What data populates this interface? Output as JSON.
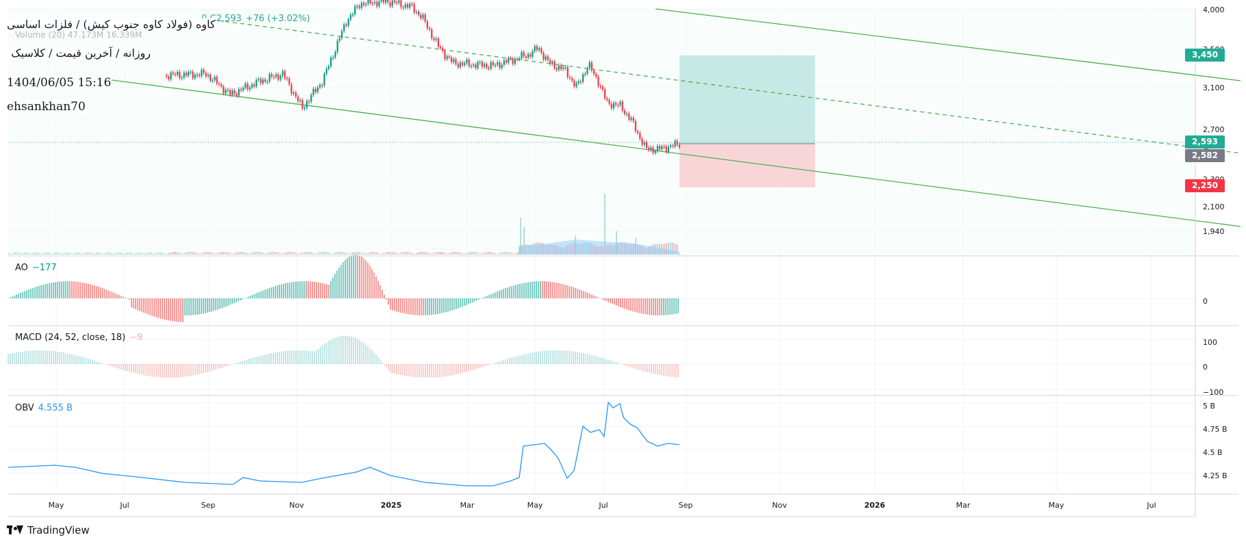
{
  "overlay": {
    "symbol_line": "کاوه (فولاد کاوه جنوب کیش) / فلزات اساسی",
    "subtitle_line": "روزانه / آخرین قیمت / کلاسیک",
    "date_line": "1404/06/05 15:16",
    "user_line": "ehsankhan70"
  },
  "legend": {
    "ohlc_close": "0 C2,593",
    "ohlc_change": "+76 (+3.02%)",
    "volume_label": "Volume (20)",
    "volume_values": "47.173M  16.339M"
  },
  "price_axis": {
    "ticks": [
      "4,000",
      "3,500",
      "3,100",
      "2,700",
      "2,300",
      "2,100",
      "1,940"
    ],
    "badges": [
      {
        "label": "3,450",
        "color": "#22ab94"
      },
      {
        "label": "2,593",
        "color": "#22ab94"
      },
      {
        "label": "2,582",
        "color": "#787b86"
      },
      {
        "label": "2,250",
        "color": "#f23645"
      }
    ]
  },
  "time_axis": {
    "labels": [
      "May",
      "Jul",
      "Sep",
      "Nov",
      "2025",
      "Mar",
      "May",
      "Jul",
      "Sep",
      "Nov",
      "2026",
      "Mar",
      "May",
      "Jul"
    ],
    "bold_labels": [
      "2025",
      "2026"
    ]
  },
  "indicators": {
    "ao": {
      "name": "AO",
      "value": "−177",
      "ticks": [
        "0"
      ],
      "value_color": "#089981"
    },
    "macd": {
      "name": "MACD (24, 52, close, 18)",
      "value": "−9",
      "ticks": [
        "100",
        "0",
        "−100"
      ],
      "value_color": "#f7a9a7"
    },
    "obv": {
      "name": "OBV",
      "value": "4.555 B",
      "ticks": [
        "5 B",
        "4.75 B",
        "4.5 B",
        "4.25 B"
      ],
      "value_color": "#2196f3"
    }
  },
  "position_tool": {
    "target": 3450,
    "entry": 2582,
    "stop": 2250,
    "target_color": "#b2dfdb",
    "stop_color": "#f8c5c9"
  },
  "colors": {
    "up": "#089981",
    "down": "#f23645",
    "channel": "#4caf50",
    "obv_line": "#2196f3"
  },
  "branding": {
    "logo_text": "TradingView"
  }
}
